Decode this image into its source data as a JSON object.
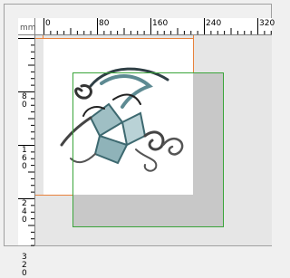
{
  "top_ruler": {
    "unit": "mm",
    "labels": [
      "0",
      "80",
      "160",
      "240",
      "320"
    ]
  },
  "left_ruler": {
    "labels": [
      "80",
      "160",
      "240",
      "320"
    ]
  }
}
